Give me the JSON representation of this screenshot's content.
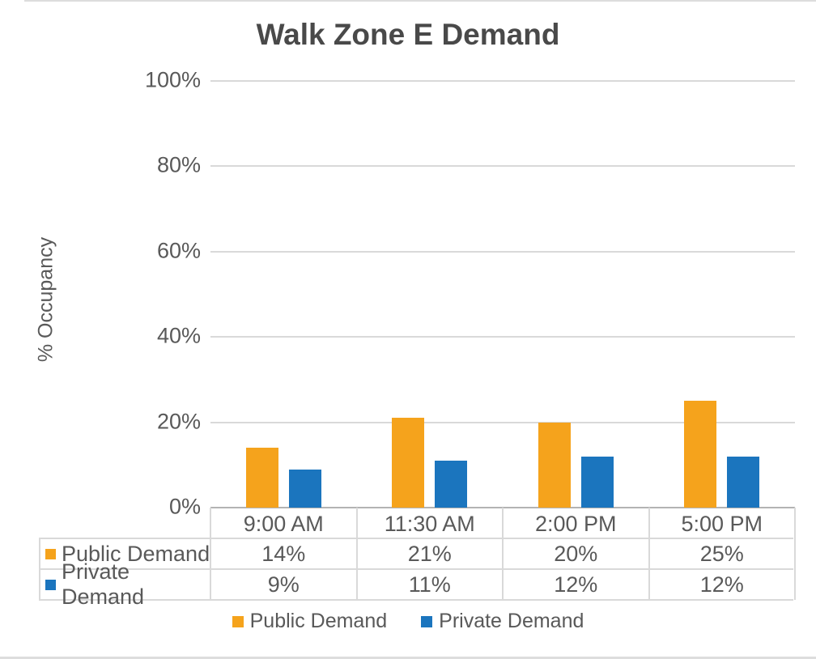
{
  "chart_data": {
    "type": "bar",
    "title": "Walk Zone E Demand",
    "xlabel": "",
    "ylabel": "% Occupancy",
    "categories": [
      "9:00 AM",
      "11:30 AM",
      "2:00 PM",
      "5:00 PM"
    ],
    "series": [
      {
        "name": "Public Demand",
        "color": "#F5A31C",
        "values": [
          14,
          21,
          20,
          25
        ],
        "labels": [
          "14%",
          "21%",
          "20%",
          "25%"
        ]
      },
      {
        "name": "Private Demand",
        "color": "#1B75BE",
        "values": [
          9,
          11,
          12,
          12
        ],
        "labels": [
          "9%",
          "11%",
          "12%",
          "12%"
        ]
      }
    ],
    "ylim": [
      0,
      100
    ],
    "ytick_labels_top_to_bottom": [
      "100%",
      "80%",
      "60%",
      "40%",
      "20%",
      "0%"
    ],
    "grid": true,
    "legend_position": "bottom",
    "data_table_shown": true
  },
  "colors": {
    "title_text": "#494949",
    "axis_text": "#595959",
    "gridline": "#d9d9d9",
    "axis_line": "#b3b3b3",
    "background": "#ffffff"
  }
}
